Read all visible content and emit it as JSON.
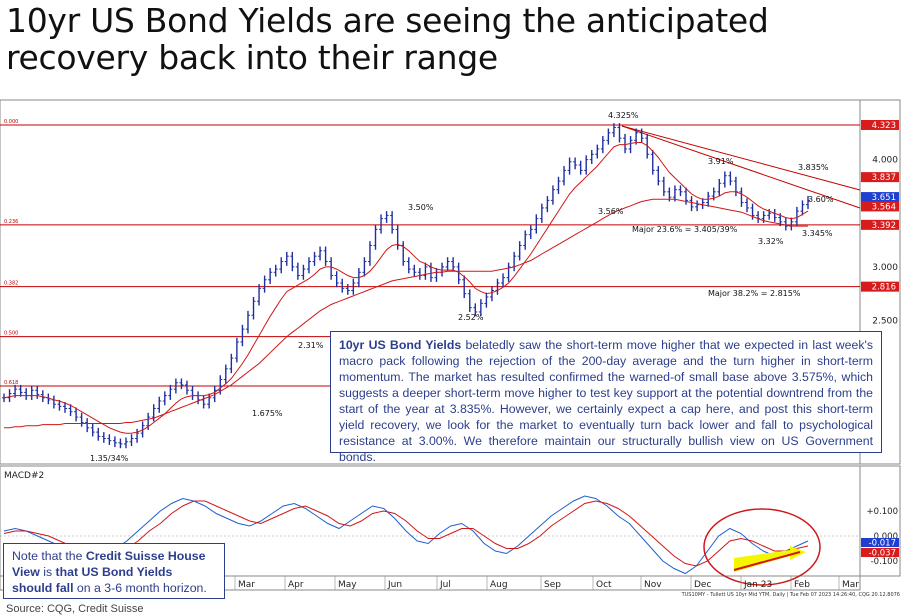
{
  "page": {
    "title_line1": "10yr US Bond Yields are seeing the anticipated",
    "title_line2": "recovery back into their range",
    "source": "Source: CQG, Credit Suisse",
    "footer_stamp": "TUS10MY - Tullett US 10yr Mid YTM, Daily | Tue Feb 07 2023 14:26:40, CQG 20.12.8076"
  },
  "annotation": {
    "lead": "10yr US Bond Yields",
    "body": " belatedly saw the short-term move higher that we expected in last week's macro pack following the rejection of the 200-day average and the turn higher in short-term momentum. The market has resulted confirmed the warned-of small base above 3.575%, which suggests a deeper short-term move higher to test key support at the potential downtrend from the start of the year at 3.835%. However, we certainly expect a cap here, and post this short-term yield recovery, we look for the market to eventually turn back lower and fall to psychological resistance at 3.00%. We therefore maintain our structurally bullish view on US Government bonds."
  },
  "note": {
    "pre": "Note that the ",
    "bold1": "Credit Suisse House View",
    "mid": " is ",
    "bold2": "that US Bond Yields should fall",
    "post": " on a 3-6 month horizon."
  },
  "colors": {
    "price_bars": "#1f2fa0",
    "ma_red": "#d01818",
    "level_line": "#c40000",
    "macd_blue": "#1f5fd0",
    "macd_signal": "#d01818",
    "badge_red": "#d81c1c",
    "badge_blue": "#1f3fd0",
    "annotation_text": "#2c3e8c",
    "arrow_fill": "#f5f500",
    "arrow_red": "#d01818"
  },
  "chart_data": {
    "type": "line",
    "subtype": "ohlc-bars with moving averages and MACD panel",
    "x_tick_labels": [
      "Mar",
      "Apr",
      "May",
      "Jun",
      "Jul",
      "Aug",
      "Sep",
      "Oct",
      "Nov",
      "Dec",
      "Jan 23",
      "Feb",
      "Mar"
    ],
    "y_tick_labels": [
      "4.000",
      "3.000",
      "2.500"
    ],
    "right_badges": [
      {
        "label": "4.323",
        "value": 4.323,
        "color": "red"
      },
      {
        "label": "3.837",
        "value": 3.837,
        "color": "red"
      },
      {
        "label": "3.651",
        "value": 3.651,
        "color": "blue"
      },
      {
        "label": "3.564",
        "value": 3.564,
        "color": "red"
      },
      {
        "label": "3.392",
        "value": 3.392,
        "color": "red"
      },
      {
        "label": "2.816",
        "value": 2.816,
        "color": "red"
      }
    ],
    "horizontal_levels": [
      {
        "value": 4.323,
        "left_label": "0.000"
      },
      {
        "value": 3.392,
        "left_label": "0.236"
      },
      {
        "value": 2.816,
        "left_label": "0.382"
      },
      {
        "value": 2.35,
        "left_label": "0.500"
      },
      {
        "value": 1.89,
        "left_label": "0.618"
      }
    ],
    "annotations": [
      "4.325%",
      "3.91%",
      "3.835%",
      "3.60%",
      "3.56%",
      "3.50%",
      "Major 23.6% = 3.405/39%",
      "3.32%",
      "3.345%",
      "Major 38.2% = 2.815%",
      "2.52%",
      "2.31%",
      "1.675%",
      "1.35/34%"
    ],
    "series": [
      {
        "values": [
          1.78,
          1.82,
          1.86,
          1.83,
          1.8,
          1.85,
          1.81,
          1.78,
          1.76,
          1.72,
          1.7,
          1.68,
          1.65,
          1.6,
          1.55,
          1.5,
          1.46,
          1.42,
          1.4,
          1.38,
          1.36,
          1.35,
          1.37,
          1.4,
          1.45,
          1.52,
          1.6,
          1.68,
          1.75,
          1.8,
          1.86,
          1.92,
          1.9,
          1.85,
          1.8,
          1.76,
          1.72,
          1.78,
          1.85,
          1.95,
          2.05,
          2.15,
          2.3,
          2.42,
          2.55,
          2.68,
          2.8,
          2.88,
          2.95,
          2.98,
          3.05,
          3.1,
          3.0,
          2.92,
          2.98,
          3.05,
          3.1,
          3.15,
          3.05,
          2.92,
          2.85,
          2.8,
          2.78,
          2.85,
          2.95,
          3.05,
          3.2,
          3.35,
          3.45,
          3.48,
          3.35,
          3.2,
          3.05,
          2.98,
          2.95,
          2.92,
          3.0,
          2.9,
          2.95,
          3.0,
          3.05,
          3.0,
          2.88,
          2.75,
          2.62,
          2.58,
          2.66,
          2.72,
          2.78,
          2.85,
          2.9,
          3.0,
          3.1,
          3.2,
          3.3,
          3.35,
          3.45,
          3.55,
          3.62,
          3.72,
          3.8,
          3.9,
          3.98,
          3.95,
          3.9,
          4.0,
          4.05,
          4.1,
          4.18,
          4.25,
          4.3,
          4.2,
          4.1,
          4.18,
          4.25,
          4.2,
          4.05,
          3.9,
          3.8,
          3.7,
          3.65,
          3.72,
          3.7,
          3.62,
          3.56,
          3.58,
          3.6,
          3.66,
          3.7,
          3.78,
          3.85,
          3.8,
          3.7,
          3.6,
          3.55,
          3.48,
          3.45,
          3.48,
          3.5,
          3.46,
          3.42,
          3.38,
          3.42,
          3.52,
          3.58,
          3.62
        ]
      },
      {
        "name": "",
        "values": [
          1.78,
          1.79,
          1.8,
          1.8,
          1.8,
          1.8,
          1.8,
          1.79,
          1.78,
          1.76,
          1.75,
          1.73,
          1.71,
          1.68,
          1.65,
          1.62,
          1.59,
          1.56,
          1.53,
          1.5,
          1.48,
          1.46,
          1.45,
          1.45,
          1.46,
          1.48,
          1.51,
          1.55,
          1.59,
          1.63,
          1.68,
          1.73,
          1.77,
          1.79,
          1.8,
          1.8,
          1.8,
          1.81,
          1.83,
          1.87,
          1.91,
          1.96,
          2.03,
          2.1,
          2.18,
          2.27,
          2.36,
          2.45,
          2.54,
          2.62,
          2.7,
          2.77,
          2.8,
          2.83,
          2.86,
          2.89,
          2.93,
          2.98,
          3.0,
          3.0,
          2.98,
          2.95,
          2.92,
          2.9,
          2.9,
          2.92,
          2.96,
          3.02,
          3.09,
          3.16,
          3.2,
          3.21,
          3.19,
          3.15,
          3.1,
          3.05,
          3.03,
          3.0,
          2.98,
          2.97,
          2.97,
          2.97,
          2.95,
          2.91,
          2.86,
          2.8,
          2.77,
          2.75,
          2.76,
          2.78,
          2.81,
          2.85,
          2.91,
          2.98,
          3.05,
          3.12,
          3.2,
          3.28,
          3.36,
          3.44,
          3.52,
          3.6,
          3.68,
          3.74,
          3.79,
          3.84,
          3.89,
          3.94,
          4.0,
          4.06,
          4.12,
          4.14,
          4.14,
          4.15,
          4.16,
          4.16,
          4.13,
          4.08,
          4.02,
          3.95,
          3.88,
          3.83,
          3.78,
          3.73,
          3.68,
          3.65,
          3.63,
          3.63,
          3.64,
          3.66,
          3.69,
          3.7,
          3.7,
          3.68,
          3.65,
          3.61,
          3.57,
          3.54,
          3.52,
          3.5,
          3.48,
          3.46,
          3.45,
          3.46,
          3.49,
          3.52
        ]
      },
      {
        "name": "",
        "values": [
          1.5,
          1.5,
          1.51,
          1.51,
          1.52,
          1.52,
          1.52,
          1.53,
          1.53,
          1.53,
          1.53,
          1.54,
          1.54,
          1.54,
          1.54,
          1.54,
          1.54,
          1.54,
          1.54,
          1.54,
          1.54,
          1.54,
          1.55,
          1.55,
          1.56,
          1.57,
          1.58,
          1.59,
          1.61,
          1.63,
          1.65,
          1.67,
          1.69,
          1.71,
          1.73,
          1.75,
          1.77,
          1.79,
          1.81,
          1.84,
          1.87,
          1.9,
          1.94,
          1.98,
          2.02,
          2.06,
          2.1,
          2.15,
          2.2,
          2.25,
          2.3,
          2.35,
          2.39,
          2.43,
          2.47,
          2.51,
          2.55,
          2.59,
          2.62,
          2.65,
          2.67,
          2.69,
          2.71,
          2.73,
          2.75,
          2.77,
          2.79,
          2.81,
          2.83,
          2.85,
          2.87,
          2.88,
          2.89,
          2.9,
          2.91,
          2.92,
          2.93,
          2.94,
          2.95,
          2.95,
          2.96,
          2.96,
          2.96,
          2.96,
          2.96,
          2.96,
          2.96,
          2.96,
          2.96,
          2.97,
          2.98,
          2.99,
          3.0,
          3.02,
          3.04,
          3.06,
          3.09,
          3.12,
          3.15,
          3.18,
          3.21,
          3.24,
          3.27,
          3.3,
          3.33,
          3.36,
          3.39,
          3.42,
          3.45,
          3.48,
          3.51,
          3.53,
          3.55,
          3.57,
          3.59,
          3.61,
          3.62,
          3.63,
          3.63,
          3.63,
          3.63,
          3.63,
          3.62,
          3.61,
          3.6,
          3.59,
          3.58,
          3.57,
          3.56,
          3.55,
          3.54,
          3.53,
          3.52,
          3.51,
          3.49,
          3.47,
          3.45,
          3.43,
          3.42,
          3.41,
          3.4,
          3.39,
          3.38,
          3.38,
          3.38,
          3.38
        ]
      }
    ],
    "macd_panel": {
      "label": "MACD#2",
      "y_tick_labels": [
        "+0.100",
        "0.000",
        "-0.100"
      ],
      "badges": [
        {
          "label": "-0.017",
          "color": "blue"
        },
        {
          "label": "-0.037",
          "color": "red"
        }
      ],
      "macd": [
        0.02,
        0.03,
        0.02,
        0.0,
        -0.02,
        -0.04,
        -0.06,
        -0.08,
        -0.09,
        -0.08,
        -0.05,
        -0.02,
        0.02,
        0.06,
        0.1,
        0.13,
        0.15,
        0.14,
        0.12,
        0.09,
        0.07,
        0.05,
        0.04,
        0.06,
        0.09,
        0.12,
        0.13,
        0.11,
        0.08,
        0.05,
        0.03,
        0.06,
        0.09,
        0.12,
        0.11,
        0.07,
        0.02,
        -0.02,
        -0.03,
        0.01,
        0.04,
        0.05,
        0.02,
        -0.03,
        -0.06,
        -0.07,
        -0.04,
        0.0,
        0.04,
        0.08,
        0.11,
        0.14,
        0.16,
        0.15,
        0.12,
        0.08,
        0.05,
        0.0,
        -0.05,
        -0.1,
        -0.13,
        -0.15,
        -0.12,
        -0.06,
        0.0,
        0.03,
        0.01,
        -0.03,
        -0.06,
        -0.08,
        -0.06,
        -0.04,
        -0.02
      ],
      "signal": [
        0.01,
        0.02,
        0.02,
        0.01,
        0.0,
        -0.02,
        -0.04,
        -0.06,
        -0.07,
        -0.08,
        -0.07,
        -0.05,
        -0.02,
        0.02,
        0.05,
        0.09,
        0.12,
        0.14,
        0.14,
        0.12,
        0.1,
        0.08,
        0.06,
        0.05,
        0.07,
        0.09,
        0.11,
        0.12,
        0.1,
        0.08,
        0.05,
        0.04,
        0.06,
        0.09,
        0.1,
        0.09,
        0.06,
        0.02,
        -0.01,
        -0.01,
        0.01,
        0.03,
        0.03,
        0.0,
        -0.03,
        -0.05,
        -0.05,
        -0.03,
        0.0,
        0.04,
        0.07,
        0.1,
        0.13,
        0.14,
        0.13,
        0.11,
        0.08,
        0.04,
        0.0,
        -0.04,
        -0.08,
        -0.11,
        -0.12,
        -0.1,
        -0.06,
        -0.02,
        -0.01,
        -0.02,
        -0.04,
        -0.06,
        -0.06,
        -0.05,
        -0.04
      ]
    },
    "ylim": [
      1.2,
      4.5
    ]
  }
}
